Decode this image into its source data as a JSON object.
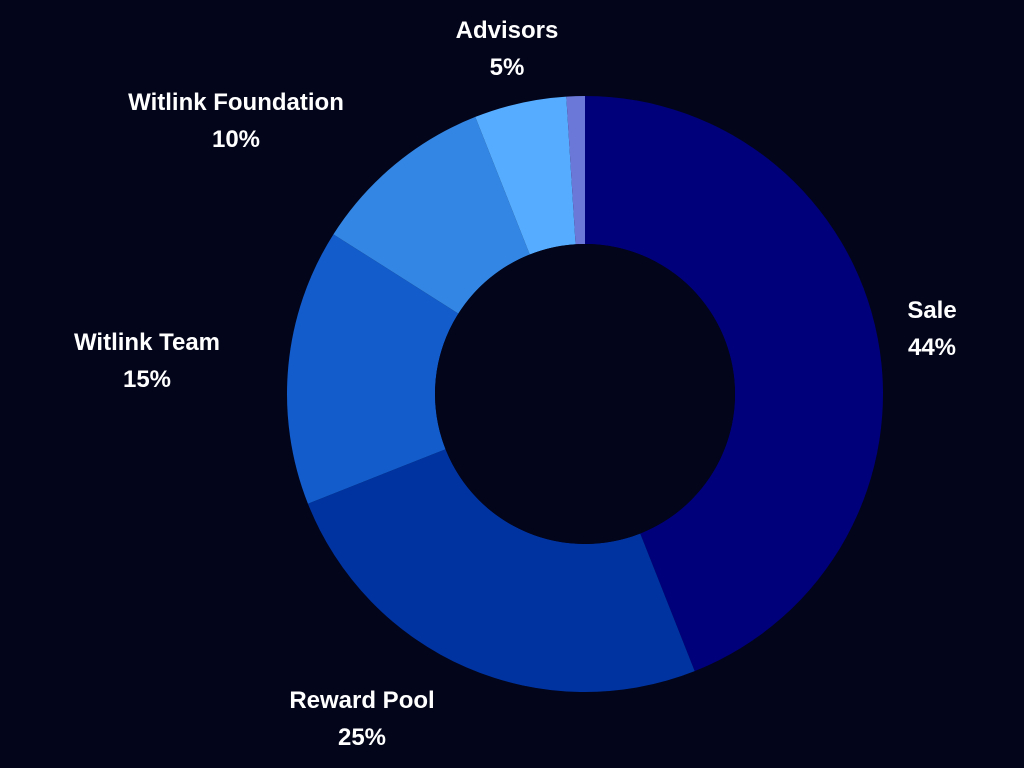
{
  "chart_data": {
    "type": "pie",
    "variant": "donut",
    "title": "",
    "slices": [
      {
        "label": "Sale",
        "display": "44%",
        "value": 44,
        "color": "#00007a"
      },
      {
        "label": "Reward Pool",
        "display": "25%",
        "value": 25,
        "color": "#0033a0"
      },
      {
        "label": "Witlink Team",
        "display": "15%",
        "value": 15,
        "color": "#125ccb"
      },
      {
        "label": "Witlink Foundation",
        "display": "10%",
        "value": 10,
        "color": "#3386e3"
      },
      {
        "label": "Advisors",
        "display": "5%",
        "value": 5,
        "color": "#56adff"
      },
      {
        "label": "",
        "display": "",
        "value": 1,
        "color": "#6b78d8"
      }
    ],
    "start": "12 o'clock",
    "direction": "clockwise",
    "legend": "none",
    "background_color": "#03051a",
    "center_color": "#03051a",
    "label_color": "#ffffff"
  }
}
